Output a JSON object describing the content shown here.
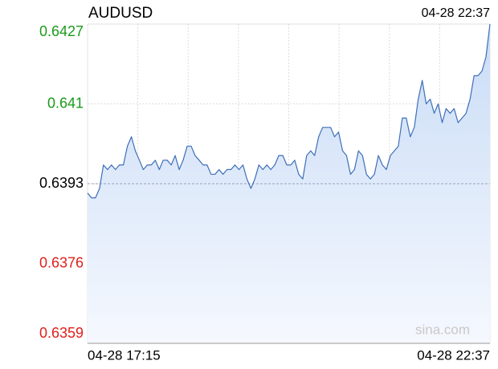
{
  "chart_data": {
    "type": "line",
    "title": "AUDUSD",
    "updated": "04-28 22:37",
    "watermark": "sina.com",
    "categories": [
      "04-28 17:15",
      null,
      null,
      null,
      null,
      null,
      null,
      null,
      null,
      null,
      null,
      null,
      null,
      null,
      null,
      null,
      null,
      null,
      null,
      null,
      null,
      null,
      null,
      null,
      null,
      null,
      null,
      null,
      null,
      null,
      null,
      null,
      null,
      null,
      null,
      null,
      null,
      null,
      null,
      null,
      null,
      null,
      null,
      null,
      null,
      null,
      null,
      null,
      null,
      null,
      null,
      null,
      null,
      null,
      null,
      null,
      null,
      null,
      null,
      null,
      null,
      null,
      null,
      null,
      null,
      null,
      null,
      null,
      null,
      null,
      null,
      null,
      null,
      null,
      null,
      null,
      null,
      null,
      null,
      null,
      null,
      null,
      null,
      null,
      null,
      null,
      null,
      null,
      null,
      null,
      null,
      null,
      null,
      null,
      null,
      null,
      null,
      null,
      null,
      null,
      null,
      "04-28 22:37"
    ],
    "series": [
      {
        "name": "AUDUSD",
        "color": "#3d6fb8",
        "values": [
          0.6391,
          0.639,
          0.639,
          0.6392,
          0.6397,
          0.6396,
          0.6397,
          0.6396,
          0.6397,
          0.6397,
          0.6401,
          0.6403,
          0.64,
          0.6398,
          0.6396,
          0.6397,
          0.6397,
          0.6398,
          0.6396,
          0.6398,
          0.6398,
          0.6397,
          0.6399,
          0.6396,
          0.6398,
          0.6401,
          0.6401,
          0.6399,
          0.6398,
          0.6397,
          0.6397,
          0.6395,
          0.6395,
          0.6396,
          0.6395,
          0.6396,
          0.6396,
          0.6397,
          0.6396,
          0.6397,
          0.6394,
          0.6392,
          0.6394,
          0.6397,
          0.6396,
          0.6397,
          0.6396,
          0.6397,
          0.6399,
          0.6399,
          0.6397,
          0.6397,
          0.6398,
          0.6395,
          0.6394,
          0.6399,
          0.64,
          0.6399,
          0.6403,
          0.6405,
          0.6405,
          0.6405,
          0.6403,
          0.6404,
          0.64,
          0.6399,
          0.6395,
          0.6396,
          0.64,
          0.6399,
          0.6395,
          0.6394,
          0.6395,
          0.6399,
          0.6397,
          0.6396,
          0.6399,
          0.64,
          0.6401,
          0.6407,
          0.6407,
          0.6403,
          0.6405,
          0.6411,
          0.6415,
          0.641,
          0.6411,
          0.6408,
          0.641,
          0.6406,
          0.6409,
          0.6408,
          0.6409,
          0.6406,
          0.6407,
          0.6408,
          0.6411,
          0.6416,
          0.6416,
          0.6417,
          0.642,
          0.6427
        ]
      }
    ],
    "ylim": [
      0.6359,
      0.6427
    ],
    "yticks": [
      0.6427,
      0.641,
      0.6393,
      0.6376,
      0.6359
    ],
    "ytick_colors": [
      "#1a9a1a",
      "#1a9a1a",
      "#000000",
      "#e0201b",
      "#e0201b"
    ],
    "reference_line": 0.6393,
    "grid": true
  }
}
